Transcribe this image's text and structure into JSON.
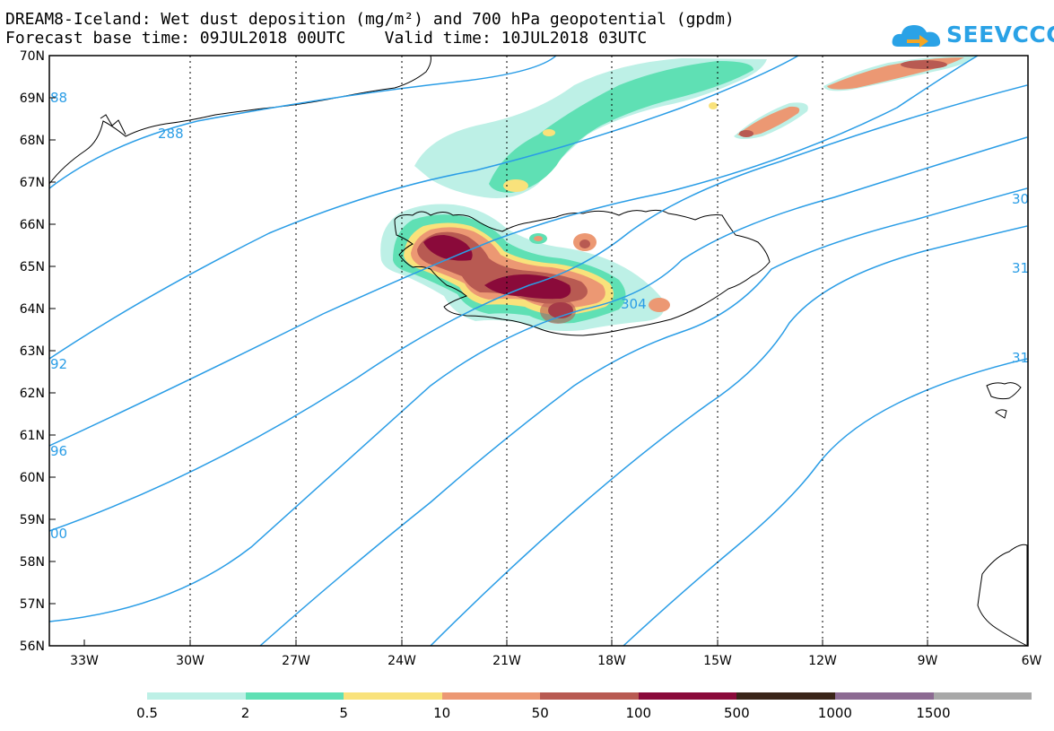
{
  "header": {
    "title_line1": "DREAM8-Iceland: Wet dust deposition (mg/m²) and 700 hPa geopotential (gpdm)",
    "title_line2": "Forecast base time: 09JUL2018 00UTC    Valid time: 10JUL2018 03UTC"
  },
  "logo": {
    "text": "SEEVCCC",
    "color": "#2aa2e6",
    "icon": "cloud-arrow-icon"
  },
  "map": {
    "lat_labels": [
      "70N",
      "69N",
      "68N",
      "67N",
      "66N",
      "65N",
      "64N",
      "63N",
      "62N",
      "61N",
      "60N",
      "59N",
      "58N",
      "57N",
      "56N"
    ],
    "lon_labels": [
      "33W",
      "30W",
      "27W",
      "24W",
      "21W",
      "18W",
      "15W",
      "12W",
      "9W",
      "6W"
    ],
    "contour_color": "#2a9de6",
    "contour_labels": [
      "88",
      "288",
      "92",
      "96",
      "00",
      "304",
      "30",
      "31",
      "31"
    ]
  },
  "legend": {
    "colors": [
      "#bdf0e6",
      "#5fe0b4",
      "#f9e27b",
      "#ec9873",
      "#b85a52",
      "#8a0a3a",
      "#3a2418",
      "#8c6a92",
      "#a8a8a8"
    ],
    "labels": [
      "0.5",
      "2",
      "5",
      "10",
      "50",
      "100",
      "500",
      "1000",
      "1500"
    ]
  }
}
